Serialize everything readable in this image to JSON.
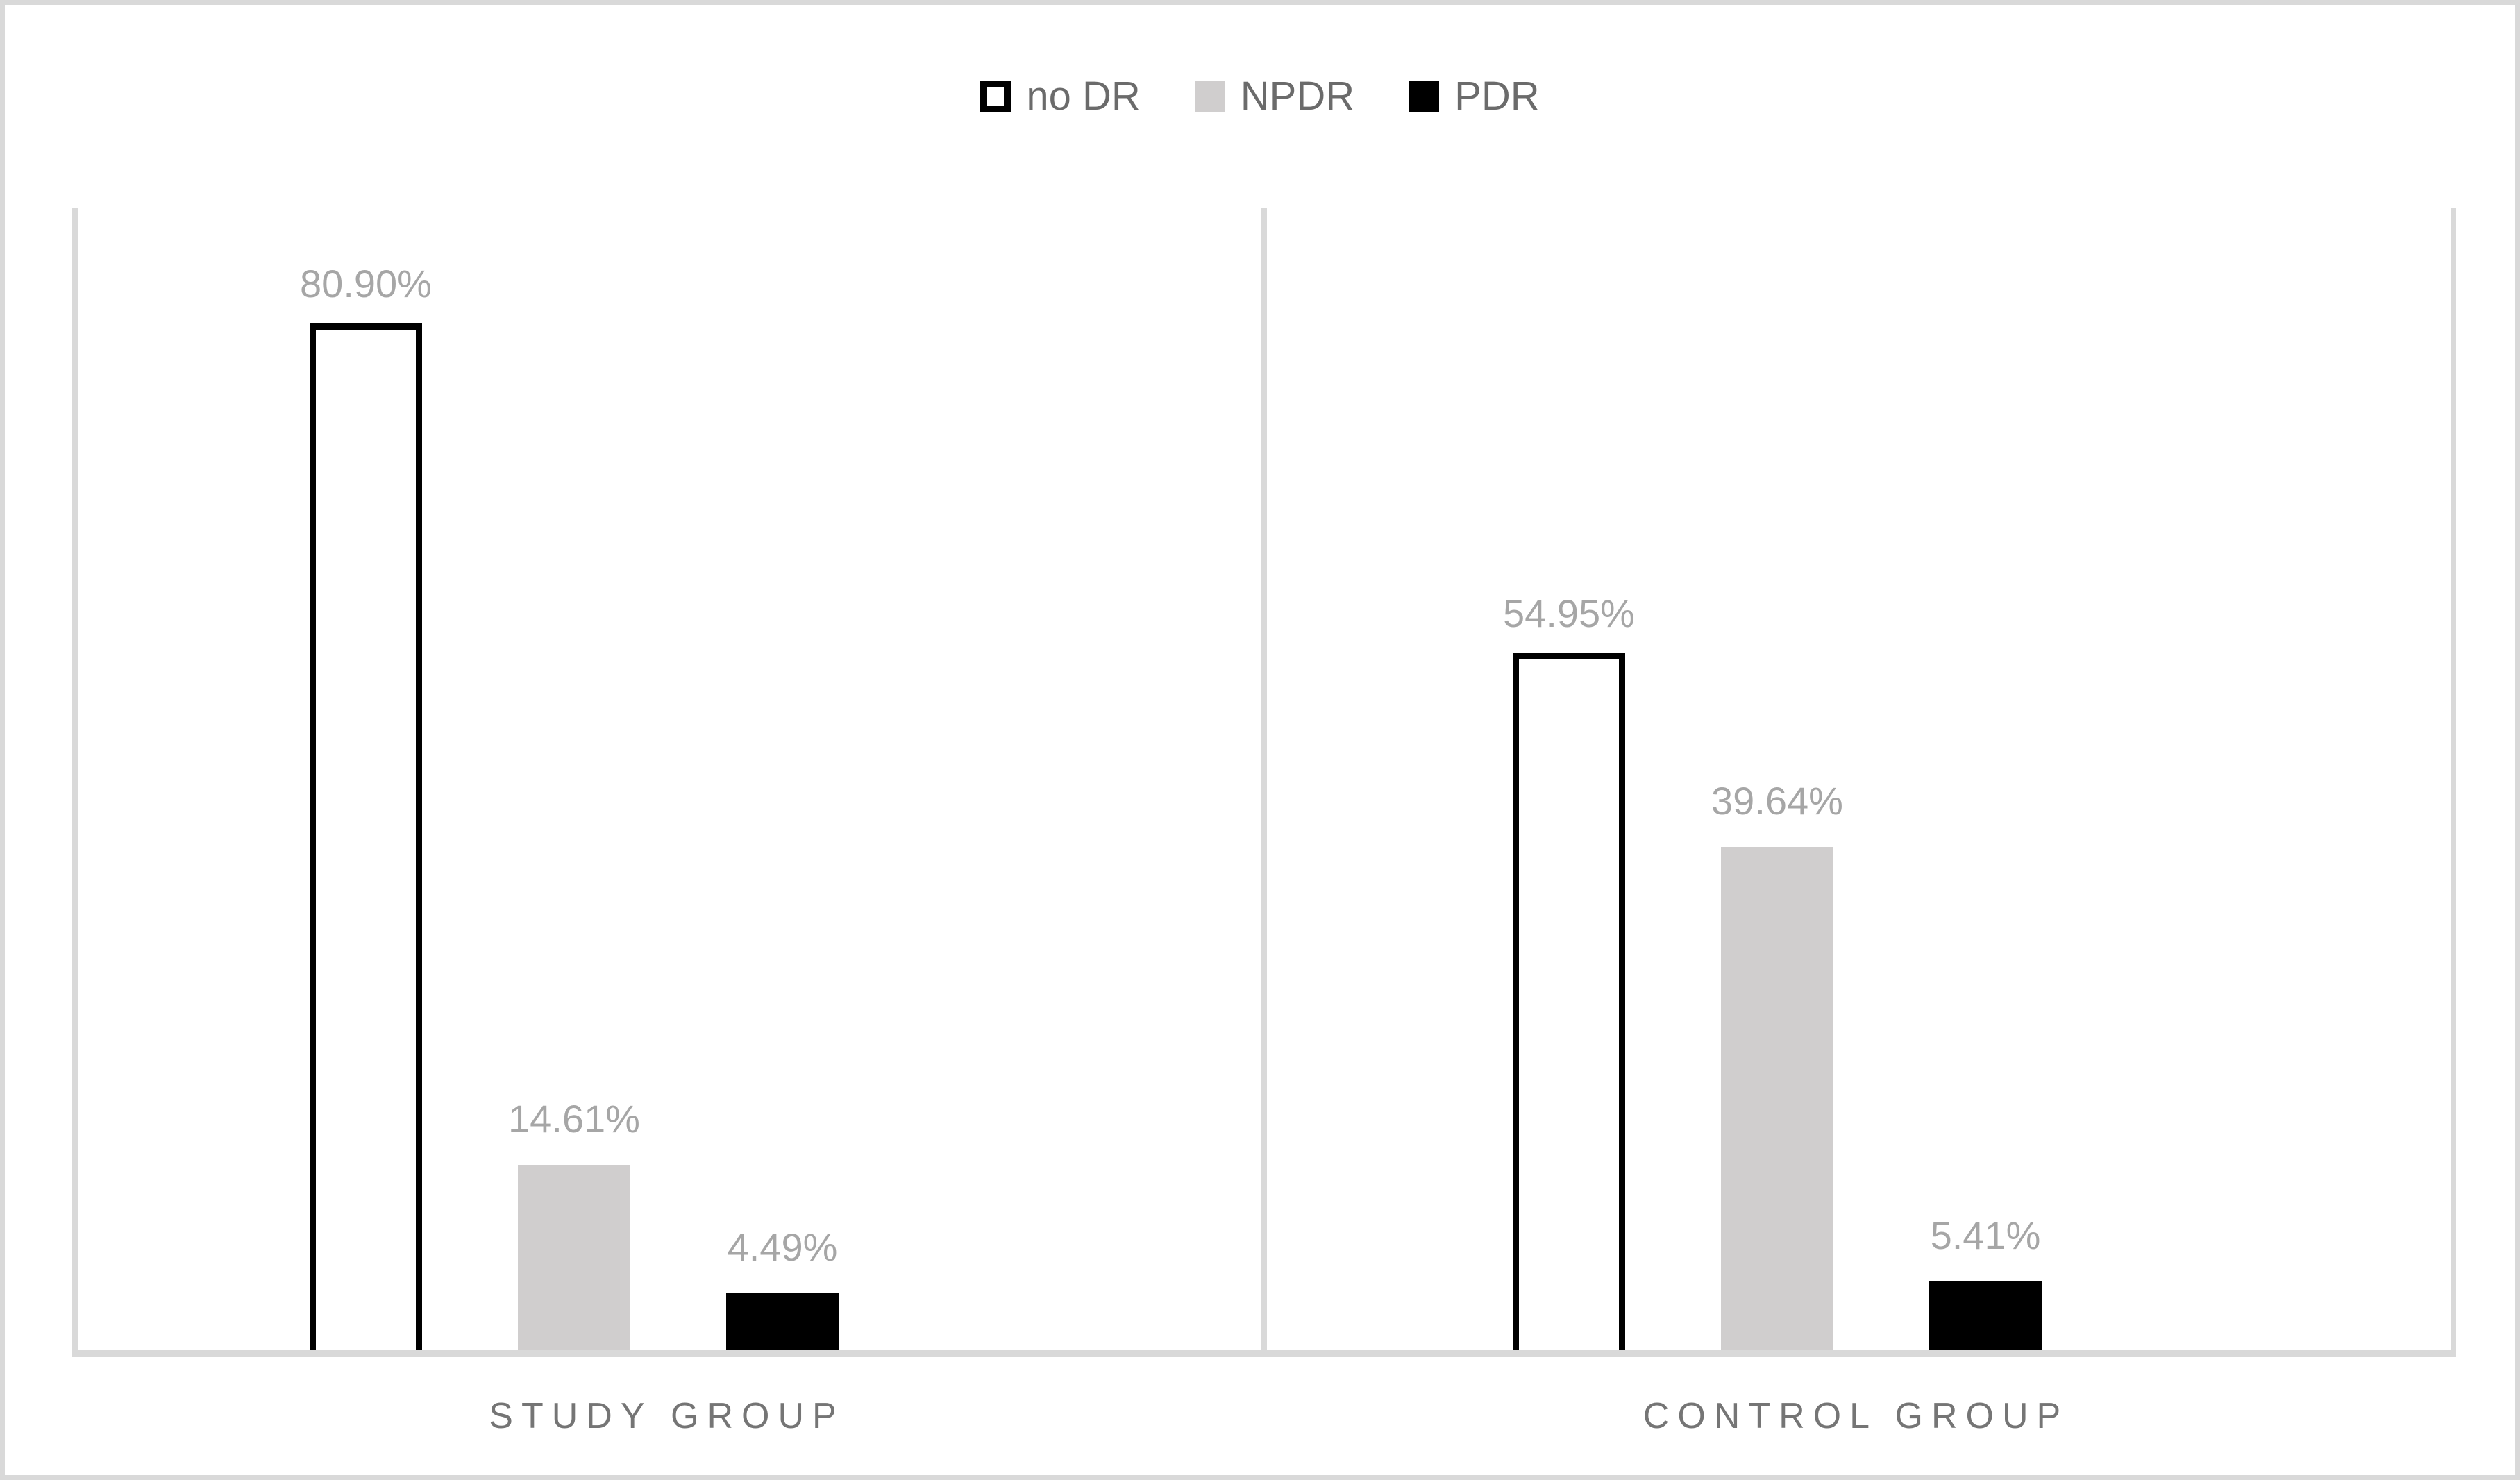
{
  "chart_data": {
    "type": "bar",
    "title": "",
    "xlabel": "",
    "ylabel": "",
    "categories": [
      "STUDY GROUP",
      "CONTROL GROUP"
    ],
    "series": [
      {
        "name": "no DR",
        "values": [
          80.9,
          54.95
        ],
        "labels": [
          "80.90%",
          "54.95%"
        ],
        "fill": "#FFFFFF",
        "border": "#000000"
      },
      {
        "name": "NPDR",
        "values": [
          14.61,
          39.64
        ],
        "labels": [
          "14.61%",
          "39.64%"
        ],
        "fill": "#D0CECE"
      },
      {
        "name": "PDR",
        "values": [
          4.49,
          5.41
        ],
        "labels": [
          "4.49%",
          "5.41%"
        ],
        "fill": "#000000"
      }
    ],
    "ylim": [
      0,
      90
    ],
    "y_axis_visible": false,
    "grid": "off",
    "legend_position": "top center",
    "annotations": []
  },
  "colors": {
    "frame_and_gridlines": "#D9D9D9",
    "data_label_text": "#A6A6A6",
    "category_label_text": "#757575",
    "legend_text": "#6B6B6B",
    "background": "#FFFFFF"
  }
}
